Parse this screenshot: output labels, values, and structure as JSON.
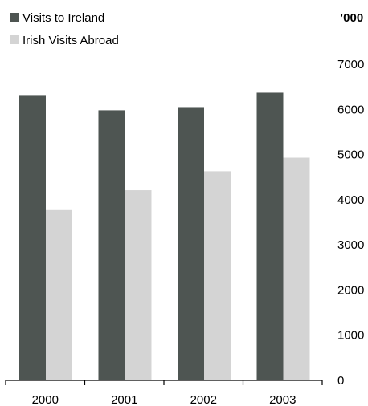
{
  "chart_data": {
    "type": "bar",
    "categories": [
      "2000",
      "2001",
      "2002",
      "2003"
    ],
    "series": [
      {
        "name": "Visits to Ireland",
        "values": [
          6300,
          5980,
          6050,
          6370
        ],
        "color": "#4e5552"
      },
      {
        "name": "Irish Visits Abroad",
        "values": [
          3770,
          4210,
          4630,
          4930
        ],
        "color": "#d4d4d4"
      }
    ],
    "y_unit": "’000",
    "ylim": [
      0,
      7000
    ],
    "yticks": [
      "0",
      "1000",
      "2000",
      "3000",
      "4000",
      "5000",
      "6000",
      "7000"
    ],
    "legend_position": "top-left",
    "y_axis_position": "right",
    "grid": false
  }
}
